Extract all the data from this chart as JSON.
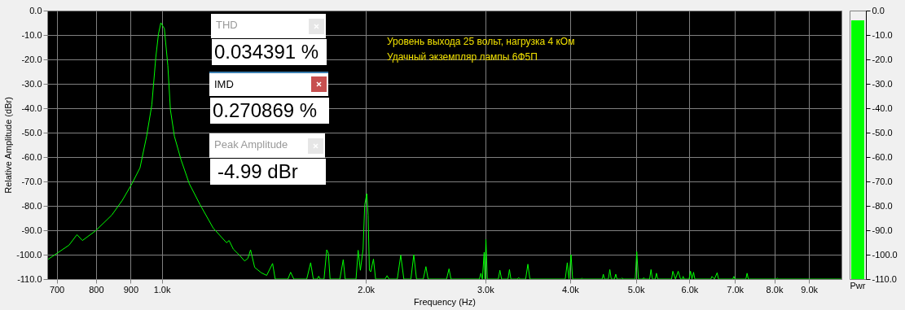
{
  "chart_data": [
    {
      "type": "line",
      "xlabel": "Frequency (Hz)",
      "ylabel": "Relative Amplitude (dBr)",
      "log": "x",
      "grid": true,
      "xlim": [
        678,
        10050
      ],
      "ylim": [
        -110,
        0
      ],
      "xticks": [
        700,
        800,
        900,
        {
          "value": 1000,
          "label": "1.0k"
        },
        {
          "value": 2000,
          "label": "2.0k"
        },
        {
          "value": 3000,
          "label": "3.0k"
        },
        {
          "value": 4000,
          "label": "4.0k"
        },
        {
          "value": 5000,
          "label": "5.0k"
        },
        {
          "value": 6000,
          "label": "6.0k"
        },
        {
          "value": 7000,
          "label": "7.0k"
        },
        {
          "value": 8000,
          "label": "8.0k"
        },
        {
          "value": 9000,
          "label": "9.0k"
        }
      ],
      "yticks": [
        {
          "value": 0,
          "label": "0.0"
        },
        {
          "value": -10,
          "label": "-10.0"
        },
        {
          "value": -20,
          "label": "-20.0"
        },
        {
          "value": -30,
          "label": "-30.0"
        },
        {
          "value": -40,
          "label": "-40.0"
        },
        {
          "value": -50,
          "label": "-50.0"
        },
        {
          "value": -60,
          "label": "-60.0"
        },
        {
          "value": -70,
          "label": "-70.0"
        },
        {
          "value": -80,
          "label": "-80.0"
        },
        {
          "value": -90,
          "label": "-90.0"
        },
        {
          "value": -100,
          "label": "-100.0"
        },
        {
          "value": -110,
          "label": "-110.0"
        }
      ],
      "annotations": [
        "THD",
        "0.034391 %",
        "IMD",
        "0.270869 %",
        "Peak Amplitude",
        "-4.99 dBr",
        "Уровень выхода 25 вольт, нагрузка 4 кОм",
        "Удачный экземпляр лампы 6Ф5П"
      ],
      "color": "#00ff00",
      "x": [
        680,
        730,
        750,
        764,
        799,
        844,
        875,
        904,
        929,
        950,
        967,
        980,
        989,
        997,
        1009,
        1021,
        1030,
        1044,
        1068,
        1098,
        1139,
        1191,
        1246,
        1257,
        1275,
        1304,
        1325,
        1340,
        1352,
        1371,
        1402,
        1428,
        1457,
        1470,
        1535,
        1549,
        1566,
        1636,
        1658,
        1673,
        1696,
        1704,
        1712,
        1735,
        1751,
        1761,
        1771,
        1831,
        1852,
        1864,
        1934,
        1948,
        1963,
        1981,
        1992,
        2006,
        2015,
        2024,
        2033,
        2052,
        2067,
        2135,
        2149,
        2163,
        2225,
        2251,
        2275,
        2330,
        2353,
        2375,
        2430,
        2452,
        2470,
        2630,
        2652,
        2670,
        2940,
        2955,
        2970,
        2988,
        2996,
        3006,
        3020,
        3135,
        3152,
        3170,
        3240,
        3256,
        3272,
        3345,
        3360,
        3375,
        3440,
        3466,
        3490,
        3935,
        3962,
        3985,
        4013,
        4035,
        4150,
        4165,
        4180,
        4460,
        4478,
        4495,
        4555,
        4578,
        4600,
        4650,
        4671,
        4690,
        4755,
        4771,
        4790,
        4990,
        5016,
        5045,
        5120,
        5138,
        5155,
        5240,
        5265,
        5290,
        5340,
        5363,
        5385,
        5645,
        5670,
        5720,
        5774,
        5820,
        5855,
        5871,
        5890,
        5990,
        6020,
        6050,
        6083,
        6110,
        6450,
        6476,
        6530,
        6590,
        6620,
        6950,
        6975,
        7000,
        7265,
        7295,
        7325,
        8060,
        8087,
        8115,
        10050
      ],
      "values": [
        -101.9,
        -96.1,
        -91.8,
        -94.2,
        -90.2,
        -83.8,
        -77.7,
        -70.9,
        -64.4,
        -51.5,
        -38.6,
        -19.3,
        -9.6,
        -5.0,
        -7.4,
        -22.5,
        -40.7,
        -51.5,
        -61.2,
        -70.9,
        -79.5,
        -89.1,
        -95.1,
        -94.2,
        -97.7,
        -100.4,
        -102.6,
        -101.5,
        -98.0,
        -105.2,
        -107.4,
        -108.5,
        -103.6,
        -110,
        -110,
        -107.2,
        -110,
        -110,
        -103.3,
        -110,
        -110,
        -108.8,
        -110,
        -110,
        -98.0,
        -99.5,
        -110,
        -110,
        -102.0,
        -110,
        -110,
        -98.2,
        -106.4,
        -97.7,
        -79.5,
        -75.0,
        -83.8,
        -106.4,
        -107.0,
        -101.8,
        -110,
        -110,
        -108.6,
        -110,
        -110,
        -100.2,
        -110,
        -110,
        -100.0,
        -110,
        -110,
        -104.9,
        -110,
        -110,
        -105.8,
        -110,
        -110,
        -107.6,
        -110,
        -99.0,
        -110,
        -93.8,
        -110,
        -110,
        -106.4,
        -110,
        -110,
        -106.1,
        -110,
        -110,
        -109.4,
        -110,
        -110,
        -103.9,
        -110,
        -110,
        -103.3,
        -110,
        -100.0,
        -110,
        -110,
        -109.7,
        -110,
        -110,
        -108.0,
        -110,
        -110,
        -106.1,
        -110,
        -110,
        -108.0,
        -110,
        -110,
        -109.6,
        -110,
        -110,
        -98.8,
        -110,
        -110,
        -109.4,
        -110,
        -110,
        -106.1,
        -110,
        -110,
        -107.6,
        -110,
        -110,
        -106.8,
        -110,
        -106.8,
        -110,
        -110,
        -108.9,
        -110,
        -110,
        -106.8,
        -110,
        -107.2,
        -110,
        -110,
        -108.9,
        -110,
        -107.4,
        -110,
        -110,
        -108.9,
        -110,
        -110,
        -107.6,
        -110,
        -110,
        -109.6,
        -110,
        -110
      ]
    },
    {
      "type": "bar",
      "categories": [
        "Pwr"
      ],
      "base": [
        -110
      ],
      "values": [
        106
      ],
      "color": "#00ff00",
      "ylim": [
        -110,
        0
      ],
      "yticks": [
        {
          "value": 0,
          "label": "0.0"
        },
        {
          "value": -10,
          "label": "-10.0"
        },
        {
          "value": -20,
          "label": "-20.0"
        },
        {
          "value": -30,
          "label": "-30.0"
        },
        {
          "value": -40,
          "label": "-40.0"
        },
        {
          "value": -50,
          "label": "-50.0"
        },
        {
          "value": -60,
          "label": "-60.0"
        },
        {
          "value": -70,
          "label": "-70.0"
        },
        {
          "value": -80,
          "label": "-80.0"
        },
        {
          "value": -90,
          "label": "-90.0"
        },
        {
          "value": -100,
          "label": "-100.0"
        },
        {
          "value": -110,
          "label": "-110.0"
        }
      ]
    }
  ]
}
